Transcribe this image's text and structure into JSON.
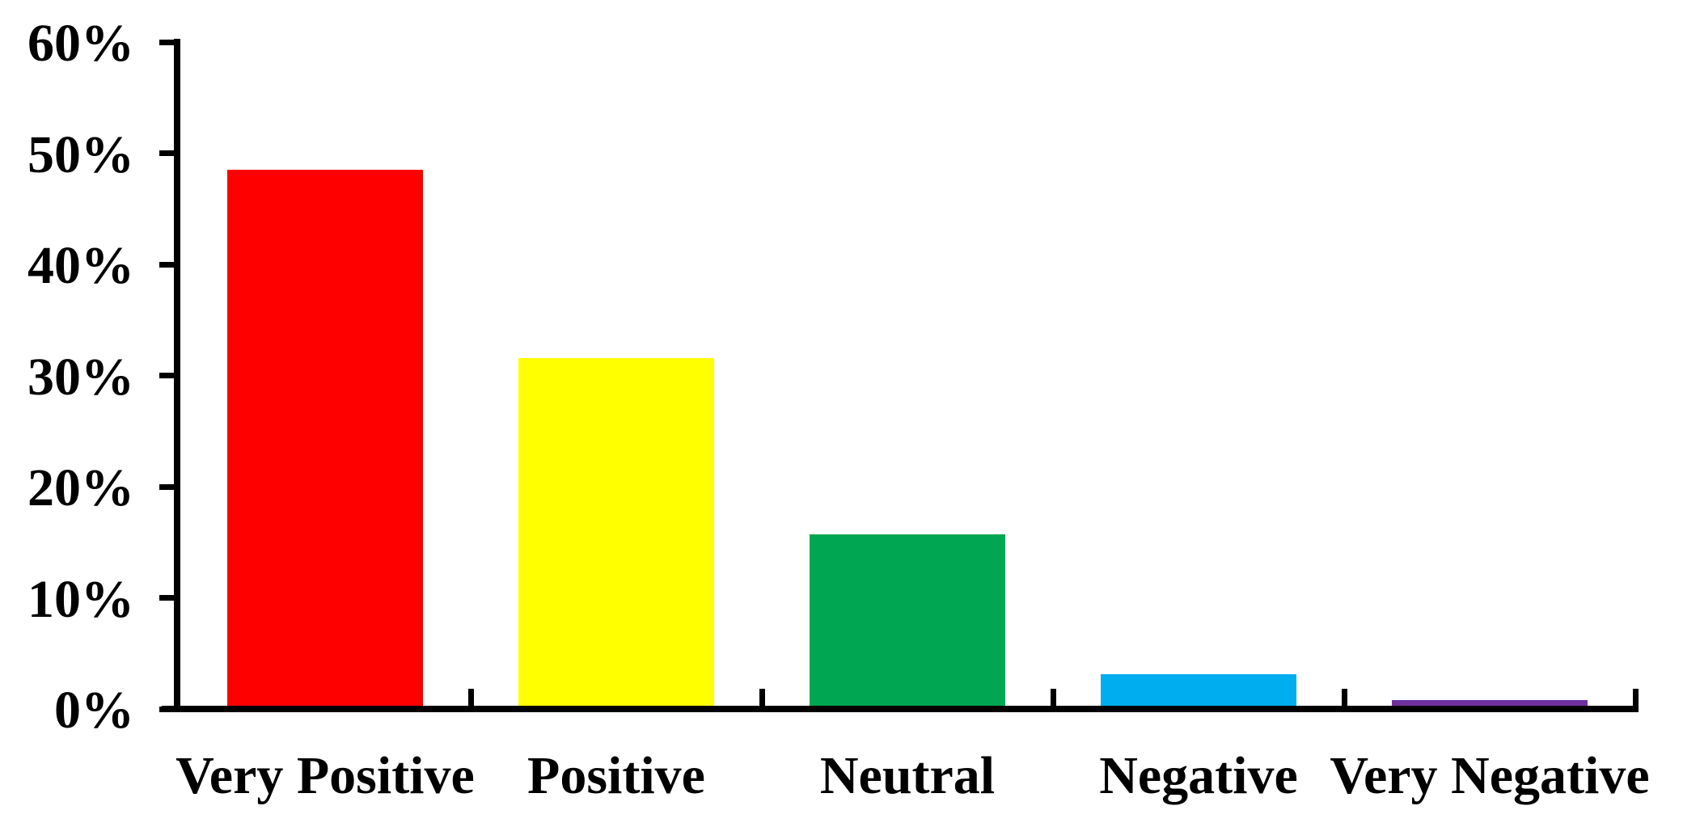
{
  "chart_data": {
    "type": "bar",
    "title": "",
    "xlabel": "",
    "ylabel": "",
    "categories": [
      "Very Positive",
      "Positive",
      "Neutral",
      "Negative",
      "Very Negative"
    ],
    "values": [
      48.5,
      31.6,
      15.7,
      3.1,
      0.8
    ],
    "bar_colors": [
      "#FF0000",
      "#FFFF00",
      "#00A651",
      "#00AEEF",
      "#7030A0"
    ],
    "ylim": [
      0,
      60
    ],
    "ytick_step": 10,
    "ytick_labels": [
      "0%",
      "10%",
      "20%",
      "30%",
      "40%",
      "50%",
      "60%"
    ],
    "grid": false,
    "legend": "none",
    "axis_color": "#000000",
    "text_color": "#000000",
    "background_color": "#FFFFFF"
  }
}
